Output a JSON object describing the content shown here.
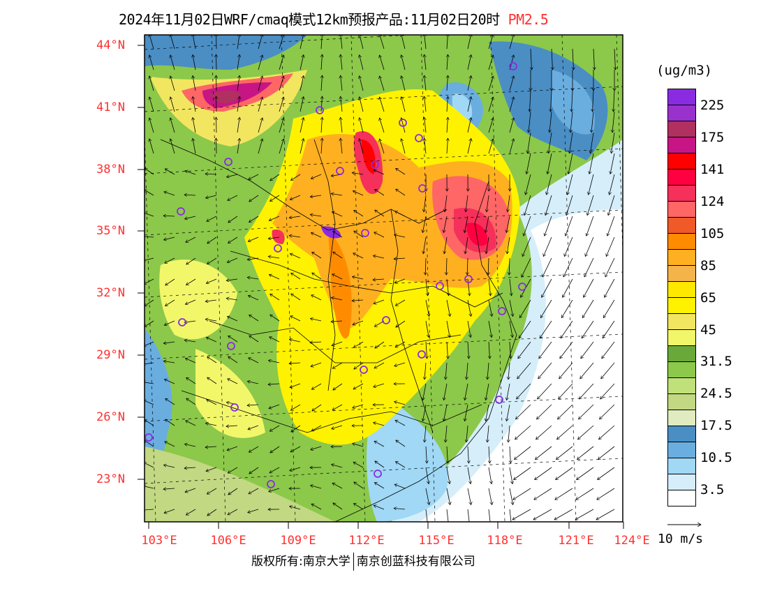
{
  "title": {
    "main": "2024年11月02日WRF/cmaq模式12km预报产品:11月02日20时",
    "pollutant": "PM2.5"
  },
  "axes": {
    "lat_labels": [
      "44°N",
      "41°N",
      "38°N",
      "35°N",
      "32°N",
      "29°N",
      "26°N",
      "23°N"
    ],
    "lon_labels": [
      "103°E",
      "106°E",
      "109°E",
      "112°E",
      "115°E",
      "118°E",
      "121°E",
      "124°E"
    ]
  },
  "legend": {
    "unit": "(ug/m3)",
    "colors": [
      "#8a2be2",
      "#9932cc",
      "#b03060",
      "#c71585",
      "#ff0000",
      "#ff0040",
      "#f5305a",
      "#ff6666",
      "#f05a28",
      "#ff8c00",
      "#ffb020",
      "#f5b44a",
      "#ffe800",
      "#fff200",
      "#f2e660",
      "#f2f76a",
      "#6aa83a",
      "#8cc84a",
      "#c0e07a",
      "#c2d882",
      "#e0ebc0",
      "#4a8ec4",
      "#6aaee0",
      "#a0d8f5",
      "#d5eefa",
      "#ffffff"
    ],
    "labels": [
      "225",
      "175",
      "141",
      "124",
      "105",
      "85",
      "65",
      "45",
      "31.5",
      "24.5",
      "17.5",
      "10.5",
      "3.5"
    ],
    "wind_reference": "10 m/s"
  },
  "footer": {
    "copyright": "版权所有:南京大学",
    "company": "南京创蓝科技有限公司"
  }
}
